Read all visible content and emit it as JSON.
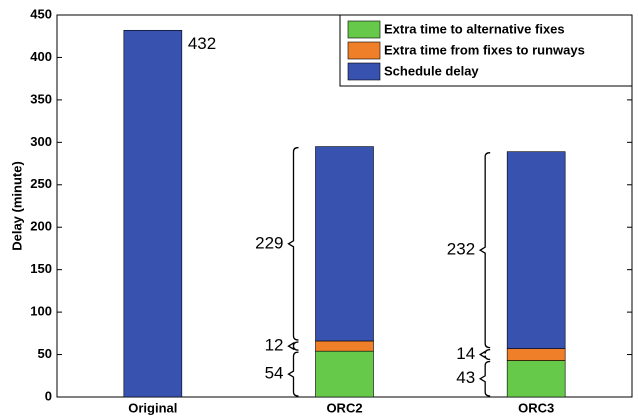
{
  "chart_data": {
    "type": "stacked_bar",
    "y_label": "Delay (minute)",
    "categories": [
      "Original",
      "ORC2",
      "ORC3"
    ],
    "series": [
      {
        "name": "Extra time to alternative fixes",
        "color": "#66c94a",
        "values": [
          null,
          54,
          43
        ]
      },
      {
        "name": "Extra time from fixes to runways",
        "color": "#f07f2a",
        "values": [
          null,
          12,
          14
        ]
      },
      {
        "name": "Schedule delay",
        "color": "#3852b0",
        "values": [
          432,
          229,
          232
        ]
      }
    ],
    "ylim": [
      0,
      450
    ],
    "yticks": [
      0,
      50,
      100,
      150,
      200,
      250,
      300,
      350,
      400,
      450
    ],
    "legend": "upper right"
  }
}
